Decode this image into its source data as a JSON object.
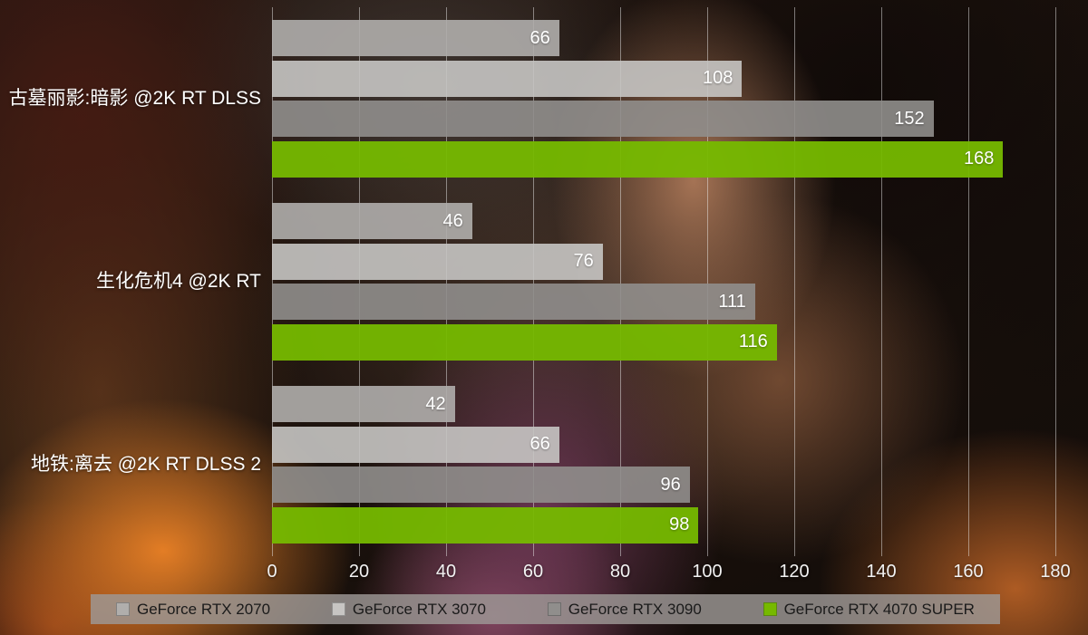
{
  "chart_data": {
    "type": "bar",
    "orientation": "horizontal",
    "title": "",
    "categories": [
      "古墓丽影:暗影 @2K RT DLSS",
      "生化危机4 @2K RT",
      "地铁:离去 @2K RT DLSS 2"
    ],
    "series": [
      {
        "name": "GeForce RTX 2070",
        "color": "#b0aeac",
        "values": [
          66,
          46,
          42
        ]
      },
      {
        "name": "GeForce RTX 3070",
        "color": "#c7c5c3",
        "values": [
          108,
          76,
          66
        ]
      },
      {
        "name": "GeForce RTX 3090",
        "color": "#908e8c",
        "values": [
          152,
          111,
          96
        ]
      },
      {
        "name": "GeForce RTX 4070 SUPER",
        "color": "#76b900",
        "values": [
          168,
          116,
          98
        ]
      }
    ],
    "xlim": [
      0,
      180
    ],
    "x_ticks": [
      0,
      20,
      40,
      60,
      80,
      100,
      120,
      140,
      160,
      180
    ],
    "grid": true,
    "value_labels": true,
    "legend_position": "bottom"
  },
  "colors": {
    "accent_green": "#76b900",
    "legend_panel": "#9e9996",
    "text_light": "#ffffff",
    "text_dark": "#1a1a1a"
  }
}
